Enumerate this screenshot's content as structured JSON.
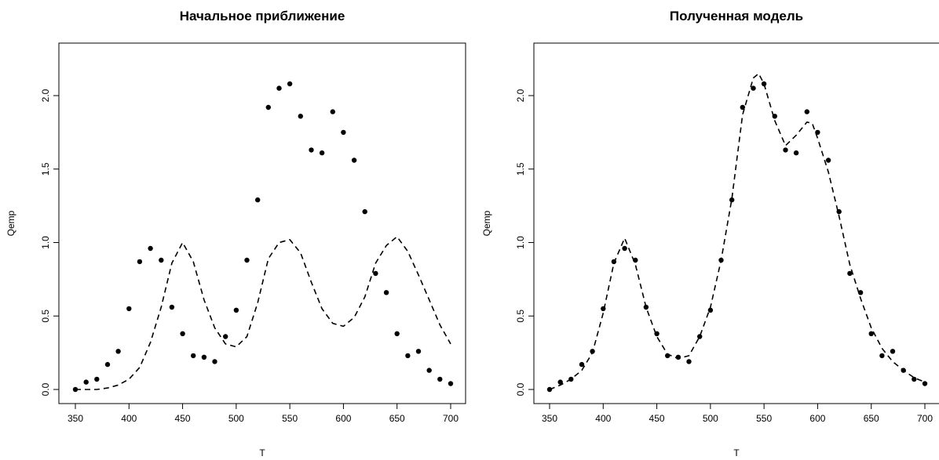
{
  "chart_data": [
    {
      "type": "scatter",
      "title": "Начальное приближение",
      "xlabel": "T",
      "ylabel": "Qemp",
      "xlim": [
        350,
        700
      ],
      "ylim": [
        0.0,
        2.3
      ],
      "x_ticks": [
        "350",
        "400",
        "450",
        "500",
        "550",
        "600",
        "650",
        "700"
      ],
      "y_ticks": [
        "0.0",
        "0.5",
        "1.0",
        "1.5",
        "2.0"
      ],
      "grid": false,
      "series": [
        {
          "style": "points",
          "x": [
            350,
            360,
            370,
            380,
            390,
            400,
            410,
            420,
            430,
            440,
            450,
            460,
            470,
            480,
            490,
            500,
            510,
            520,
            530,
            540,
            550,
            560,
            570,
            580,
            590,
            600,
            610,
            620,
            630,
            640,
            650,
            660,
            670,
            680,
            690,
            700
          ],
          "y": [
            0.0,
            0.05,
            0.07,
            0.17,
            0.26,
            0.55,
            0.87,
            0.96,
            0.88,
            0.56,
            0.38,
            0.23,
            0.22,
            0.19,
            0.36,
            0.54,
            0.88,
            1.29,
            1.92,
            2.05,
            2.08,
            1.86,
            1.63,
            1.61,
            1.89,
            1.75,
            1.56,
            1.21,
            0.79,
            0.66,
            0.38,
            0.23,
            0.26,
            0.13,
            0.07,
            0.04
          ]
        },
        {
          "style": "dashed-line",
          "x": [
            350,
            360,
            370,
            380,
            390,
            400,
            410,
            420,
            430,
            440,
            450,
            460,
            470,
            480,
            490,
            500,
            510,
            520,
            530,
            540,
            550,
            560,
            570,
            580,
            590,
            600,
            610,
            620,
            630,
            640,
            650,
            660,
            670,
            680,
            690,
            700
          ],
          "y": [
            0.0,
            0.0,
            0.0,
            0.01,
            0.03,
            0.07,
            0.15,
            0.32,
            0.56,
            0.86,
            1.0,
            0.87,
            0.61,
            0.42,
            0.31,
            0.29,
            0.36,
            0.59,
            0.89,
            1.0,
            1.02,
            0.93,
            0.73,
            0.55,
            0.45,
            0.43,
            0.49,
            0.63,
            0.86,
            0.98,
            1.04,
            0.94,
            0.78,
            0.61,
            0.44,
            0.31
          ]
        }
      ]
    },
    {
      "type": "scatter",
      "title": "Полученная модель",
      "xlabel": "T",
      "ylabel": "Qemp",
      "xlim": [
        350,
        700
      ],
      "ylim": [
        0.0,
        2.3
      ],
      "x_ticks": [
        "350",
        "400",
        "450",
        "500",
        "550",
        "600",
        "650",
        "700"
      ],
      "y_ticks": [
        "0.0",
        "0.5",
        "1.0",
        "1.5",
        "2.0"
      ],
      "grid": false,
      "series": [
        {
          "style": "points",
          "x": [
            350,
            360,
            370,
            380,
            390,
            400,
            410,
            420,
            430,
            440,
            450,
            460,
            470,
            480,
            490,
            500,
            510,
            520,
            530,
            540,
            550,
            560,
            570,
            580,
            590,
            600,
            610,
            620,
            630,
            640,
            650,
            660,
            670,
            680,
            690,
            700
          ],
          "y": [
            0.0,
            0.05,
            0.07,
            0.17,
            0.26,
            0.55,
            0.87,
            0.96,
            0.88,
            0.56,
            0.38,
            0.23,
            0.22,
            0.19,
            0.36,
            0.54,
            0.88,
            1.29,
            1.92,
            2.05,
            2.08,
            1.86,
            1.63,
            1.61,
            1.89,
            1.75,
            1.56,
            1.21,
            0.79,
            0.66,
            0.38,
            0.23,
            0.26,
            0.13,
            0.07,
            0.04
          ]
        },
        {
          "style": "dashed-line",
          "x": [
            350,
            360,
            370,
            380,
            390,
            400,
            410,
            420,
            430,
            440,
            450,
            460,
            470,
            480,
            490,
            500,
            510,
            520,
            530,
            540,
            545,
            550,
            560,
            570,
            580,
            590,
            595,
            600,
            610,
            620,
            630,
            640,
            650,
            660,
            670,
            680,
            690,
            700
          ],
          "y": [
            0.0,
            0.03,
            0.07,
            0.13,
            0.25,
            0.52,
            0.86,
            1.03,
            0.85,
            0.56,
            0.36,
            0.24,
            0.21,
            0.23,
            0.36,
            0.56,
            0.88,
            1.3,
            1.87,
            2.12,
            2.15,
            2.08,
            1.83,
            1.66,
            1.73,
            1.82,
            1.81,
            1.71,
            1.48,
            1.18,
            0.85,
            0.62,
            0.42,
            0.28,
            0.19,
            0.13,
            0.08,
            0.05
          ]
        }
      ]
    }
  ]
}
